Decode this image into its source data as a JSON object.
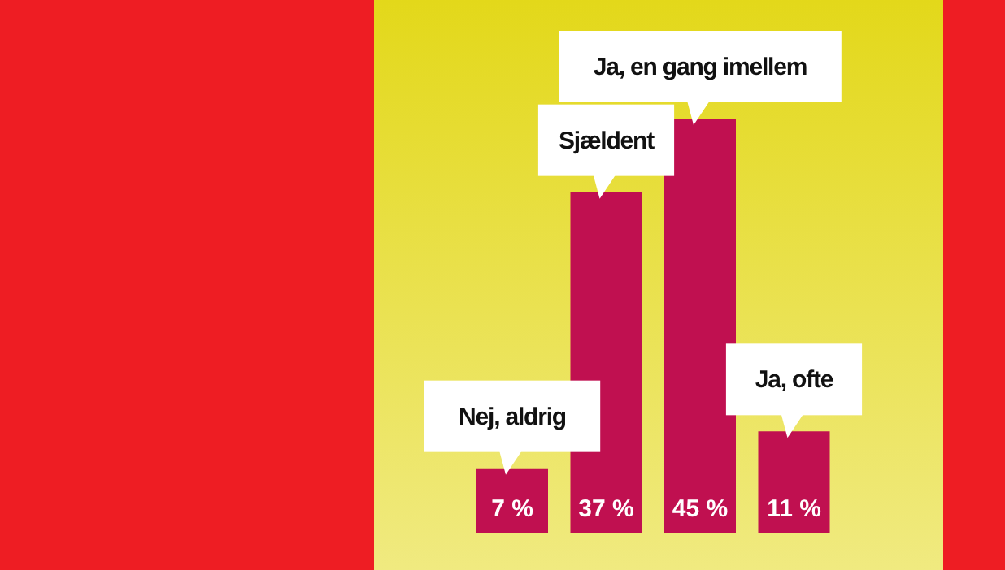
{
  "chart_data": {
    "type": "bar",
    "categories": [
      "Nej, aldrig",
      "Sjældent",
      "Ja, en gang imellem",
      "Ja, ofte"
    ],
    "values": [
      7,
      37,
      45,
      11
    ],
    "color": "#c01050",
    "value_labels": [
      "7 %",
      "37 %",
      "45 %",
      "11 %"
    ],
    "grid": false,
    "legend": false
  }
}
